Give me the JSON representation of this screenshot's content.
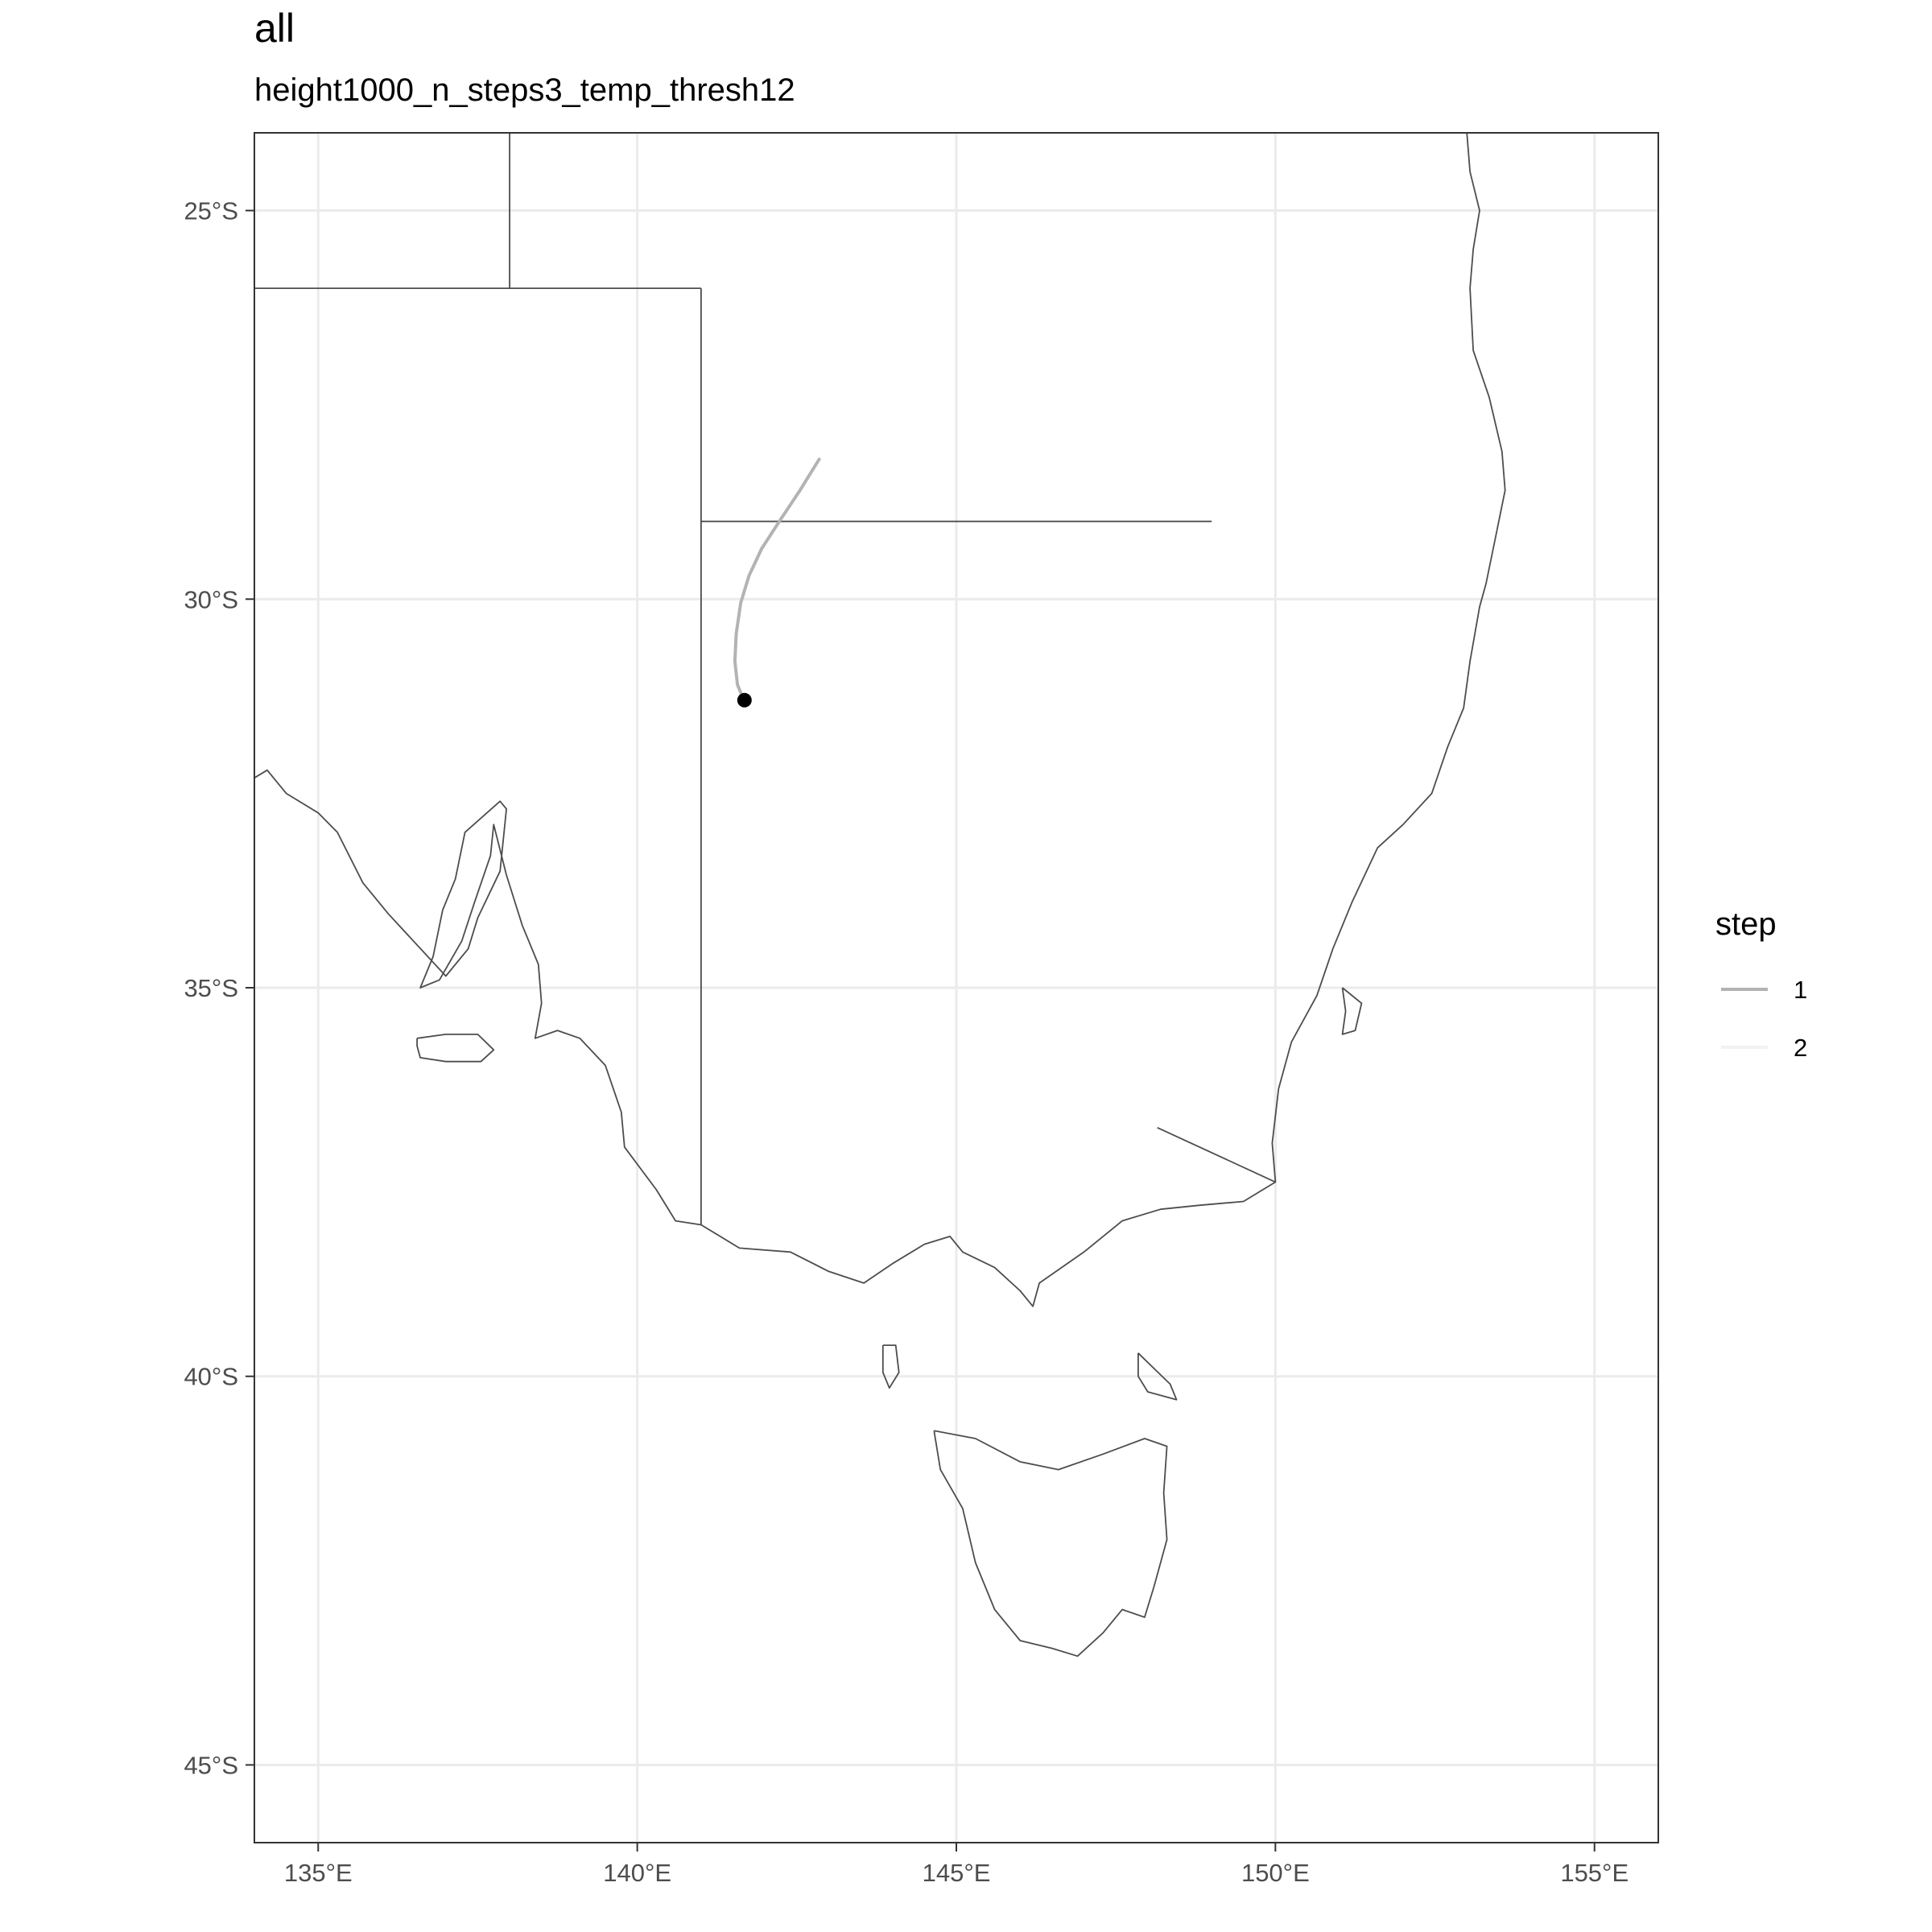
{
  "title": "all",
  "subtitle": "height1000_n_steps3_temp_thresh12",
  "colors": {
    "panel_border": "#333333",
    "grid": "#ebebeb",
    "coast": "#4d4d4d",
    "trajectory_step1": "#b3b3b3",
    "trajectory_step2": "#f2f2f2",
    "origin_point": "#000000"
  },
  "chart_data": {
    "type": "map",
    "projection": "equirectangular",
    "lon_range": [
      134,
      156
    ],
    "lat_range": [
      -46,
      -24
    ],
    "x_ticks": [
      135,
      140,
      145,
      150,
      155
    ],
    "x_tick_labels": [
      "135°E",
      "140°E",
      "145°E",
      "150°E",
      "155°E"
    ],
    "y_ticks": [
      -25,
      -30,
      -35,
      -40,
      -45
    ],
    "y_tick_labels": [
      "25°S",
      "30°S",
      "35°S",
      "40°S",
      "45°S"
    ],
    "grid": true,
    "legend": {
      "title": "step",
      "position": "right",
      "entries": [
        {
          "label": "1",
          "color": "#b3b3b3"
        },
        {
          "label": "2",
          "color": "#f2f2f2"
        }
      ]
    },
    "trajectory": {
      "step": "1",
      "points": [
        [
          142.85,
          -28.2
        ],
        [
          142.55,
          -28.6
        ],
        [
          142.25,
          -28.97
        ],
        [
          141.95,
          -29.35
        ],
        [
          141.75,
          -29.7
        ],
        [
          141.62,
          -30.05
        ],
        [
          141.55,
          -30.45
        ],
        [
          141.53,
          -30.8
        ],
        [
          141.57,
          -31.1
        ],
        [
          141.67,
          -31.3
        ]
      ]
    },
    "origin": {
      "lon": 141.68,
      "lat": -31.3
    },
    "state_borders": [
      [
        [
          138.0,
          -24.0
        ],
        [
          138.0,
          -26.0
        ]
      ],
      [
        [
          134.0,
          -26.0
        ],
        [
          141.0,
          -26.0
        ]
      ],
      [
        [
          141.0,
          -26.0
        ],
        [
          141.0,
          -38.05
        ]
      ],
      [
        [
          141.0,
          -29.0
        ],
        [
          149.0,
          -29.0
        ]
      ],
      [
        [
          148.15,
          -36.8
        ],
        [
          150.0,
          -37.5
        ]
      ]
    ],
    "coastlines": [
      [
        [
          153.0,
          -24.0
        ],
        [
          153.05,
          -24.5
        ],
        [
          153.2,
          -25.0
        ],
        [
          153.1,
          -25.5
        ],
        [
          153.05,
          -26.0
        ],
        [
          153.1,
          -26.8
        ],
        [
          153.35,
          -27.4
        ],
        [
          153.55,
          -28.1
        ],
        [
          153.6,
          -28.6
        ],
        [
          153.45,
          -29.2
        ],
        [
          153.3,
          -29.8
        ],
        [
          153.2,
          -30.1
        ],
        [
          153.05,
          -30.8
        ],
        [
          152.95,
          -31.4
        ],
        [
          152.7,
          -31.9
        ],
        [
          152.45,
          -32.5
        ],
        [
          152.0,
          -32.9
        ],
        [
          151.6,
          -33.2
        ],
        [
          151.2,
          -33.9
        ],
        [
          150.9,
          -34.5
        ],
        [
          150.65,
          -35.1
        ],
        [
          150.25,
          -35.7
        ],
        [
          150.05,
          -36.3
        ],
        [
          149.95,
          -37.0
        ],
        [
          150.0,
          -37.5
        ],
        [
          149.5,
          -37.75
        ],
        [
          148.8,
          -37.8
        ],
        [
          148.2,
          -37.85
        ],
        [
          147.6,
          -38.0
        ],
        [
          147.0,
          -38.4
        ],
        [
          146.3,
          -38.8
        ],
        [
          146.2,
          -39.1
        ],
        [
          146.0,
          -38.9
        ],
        [
          145.6,
          -38.6
        ],
        [
          145.1,
          -38.4
        ],
        [
          144.9,
          -38.2
        ],
        [
          144.5,
          -38.3
        ],
        [
          144.0,
          -38.55
        ],
        [
          143.55,
          -38.8
        ],
        [
          143.0,
          -38.65
        ],
        [
          142.4,
          -38.4
        ],
        [
          141.6,
          -38.35
        ],
        [
          141.0,
          -38.05
        ],
        [
          140.6,
          -38.0
        ],
        [
          140.3,
          -37.6
        ],
        [
          139.8,
          -37.05
        ],
        [
          139.75,
          -36.6
        ],
        [
          139.5,
          -36.0
        ],
        [
          139.1,
          -35.65
        ],
        [
          138.75,
          -35.55
        ],
        [
          138.4,
          -35.65
        ],
        [
          138.5,
          -35.2
        ],
        [
          138.45,
          -34.7
        ],
        [
          138.2,
          -34.2
        ],
        [
          137.95,
          -33.55
        ],
        [
          137.75,
          -32.9
        ],
        [
          137.7,
          -33.3
        ],
        [
          137.45,
          -33.9
        ],
        [
          137.25,
          -34.4
        ],
        [
          136.9,
          -34.9
        ],
        [
          136.6,
          -35.0
        ],
        [
          136.8,
          -34.6
        ],
        [
          136.95,
          -34.0
        ],
        [
          137.15,
          -33.6
        ],
        [
          137.3,
          -33.0
        ],
        [
          137.85,
          -32.6
        ],
        [
          137.95,
          -32.7
        ],
        [
          137.85,
          -33.5
        ],
        [
          137.5,
          -34.1
        ],
        [
          137.35,
          -34.5
        ],
        [
          137.0,
          -34.85
        ],
        [
          136.1,
          -34.05
        ],
        [
          135.7,
          -33.65
        ],
        [
          135.3,
          -33.0
        ],
        [
          135.0,
          -32.75
        ],
        [
          134.5,
          -32.5
        ],
        [
          134.2,
          -32.2
        ],
        [
          134.0,
          -32.3
        ]
      ],
      [
        [
          136.55,
          -35.65
        ],
        [
          137.0,
          -35.6
        ],
        [
          137.5,
          -35.6
        ],
        [
          137.75,
          -35.8
        ],
        [
          137.55,
          -35.95
        ],
        [
          137.0,
          -35.95
        ],
        [
          136.6,
          -35.9
        ],
        [
          136.55,
          -35.75
        ],
        [
          136.55,
          -35.65
        ]
      ],
      [
        [
          143.85,
          -39.6
        ],
        [
          144.05,
          -39.6
        ],
        [
          144.1,
          -39.95
        ],
        [
          143.95,
          -40.15
        ],
        [
          143.85,
          -39.95
        ],
        [
          143.85,
          -39.6
        ]
      ],
      [
        [
          147.85,
          -39.7
        ],
        [
          148.1,
          -39.9
        ],
        [
          148.35,
          -40.1
        ],
        [
          148.45,
          -40.3
        ],
        [
          148.0,
          -40.2
        ],
        [
          147.85,
          -40.0
        ],
        [
          147.85,
          -39.7
        ]
      ],
      [
        [
          144.65,
          -40.7
        ],
        [
          145.3,
          -40.8
        ],
        [
          146.0,
          -41.1
        ],
        [
          146.6,
          -41.2
        ],
        [
          147.3,
          -41.0
        ],
        [
          147.95,
          -40.8
        ],
        [
          148.3,
          -40.9
        ],
        [
          148.25,
          -41.5
        ],
        [
          148.3,
          -42.1
        ],
        [
          148.1,
          -42.7
        ],
        [
          147.95,
          -43.1
        ],
        [
          147.6,
          -43.0
        ],
        [
          147.3,
          -43.3
        ],
        [
          146.9,
          -43.6
        ],
        [
          146.5,
          -43.5
        ],
        [
          146.0,
          -43.4
        ],
        [
          145.6,
          -43.0
        ],
        [
          145.3,
          -42.4
        ],
        [
          145.1,
          -41.7
        ],
        [
          144.75,
          -41.2
        ],
        [
          144.65,
          -40.7
        ]
      ],
      [
        [
          151.05,
          -35.0
        ],
        [
          151.35,
          -35.2
        ],
        [
          151.25,
          -35.55
        ],
        [
          151.05,
          -35.6
        ],
        [
          151.1,
          -35.3
        ],
        [
          151.05,
          -35.0
        ]
      ]
    ]
  }
}
